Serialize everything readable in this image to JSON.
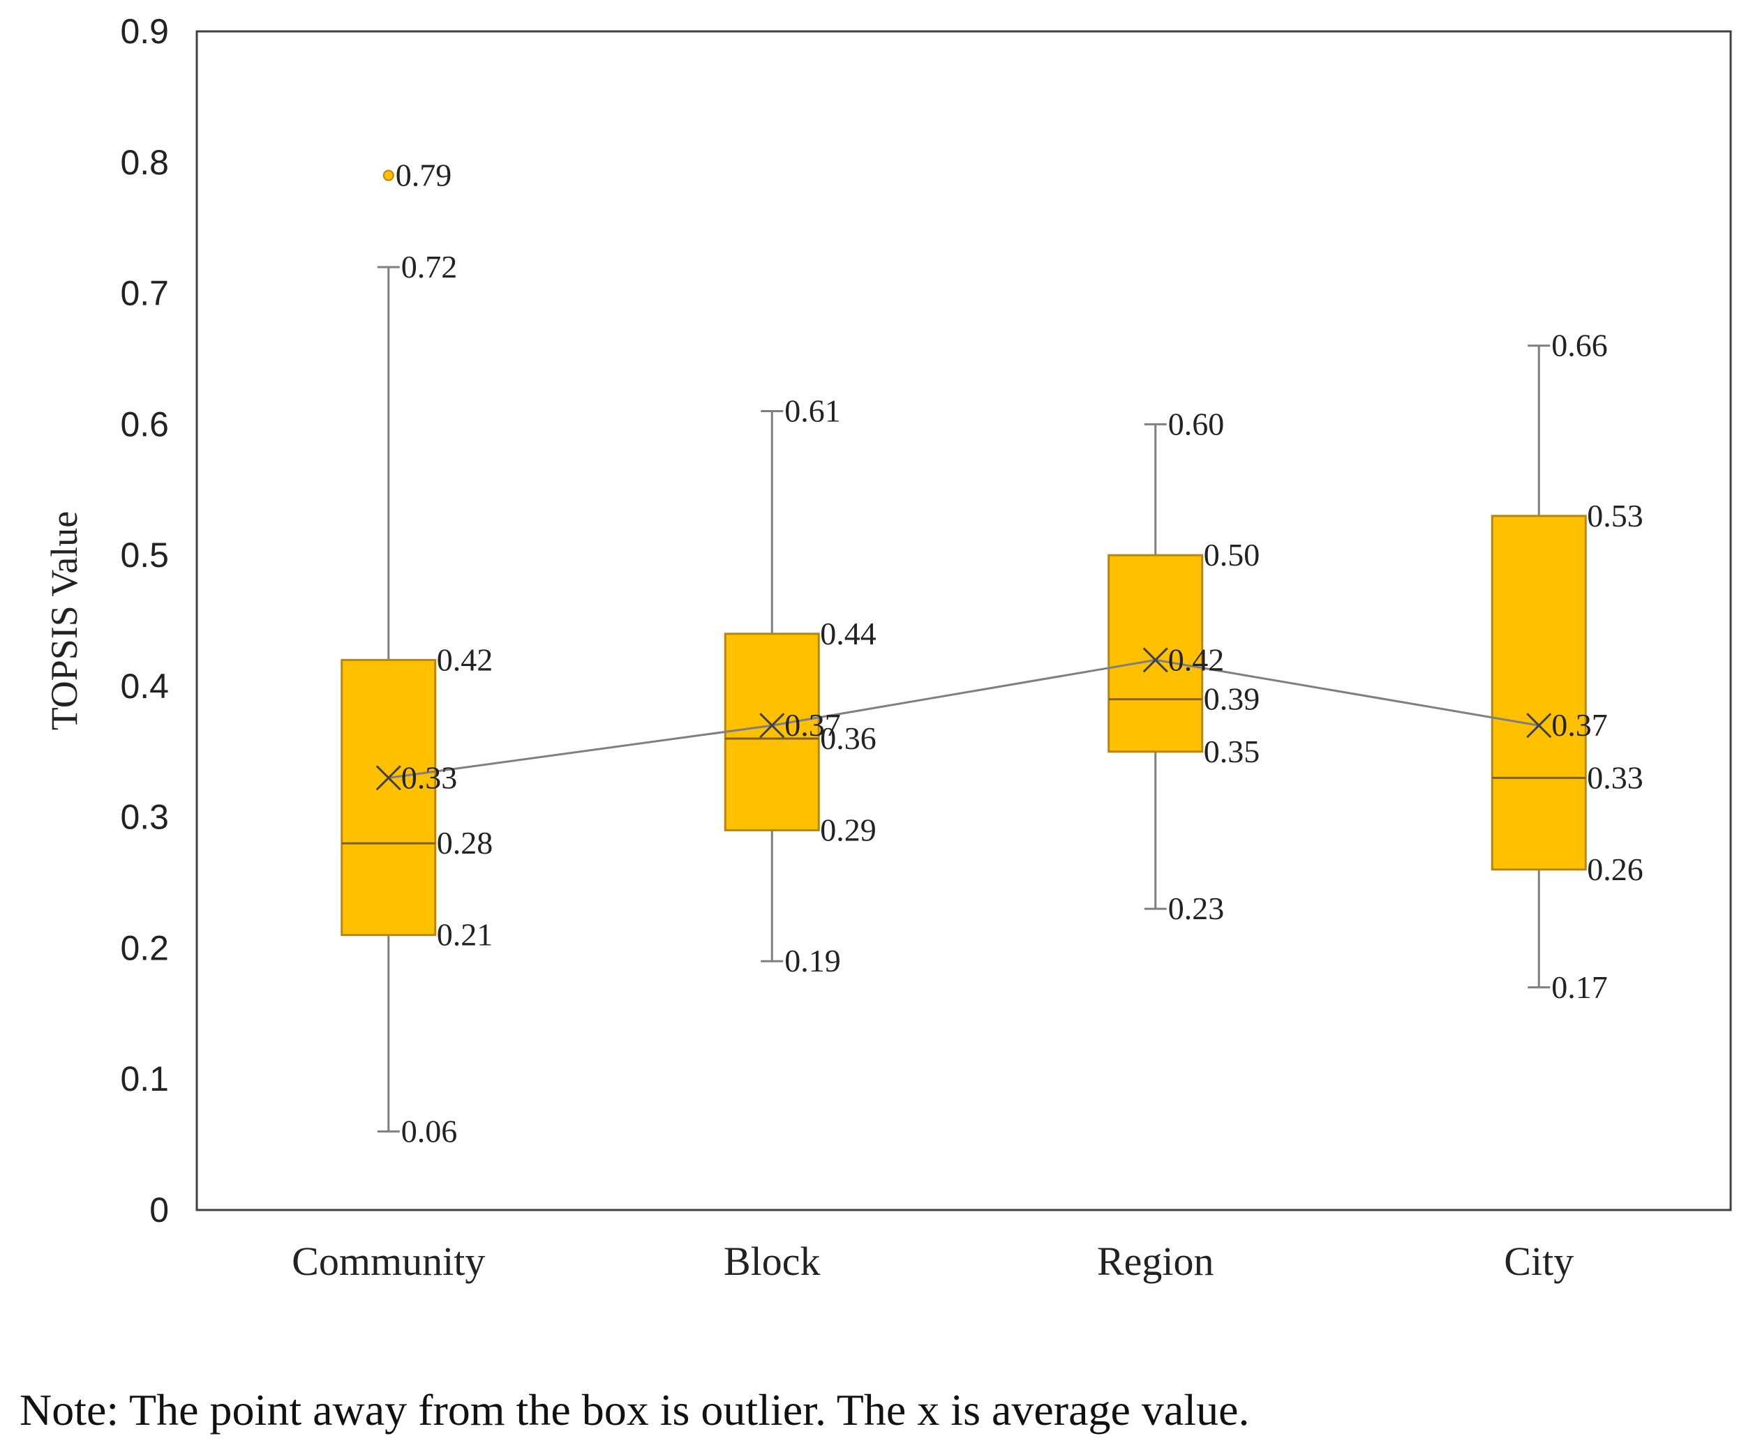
{
  "chart_data": {
    "type": "box",
    "ylabel": "TOPSIS Value",
    "xlabel": "",
    "ylim": [
      0,
      0.9
    ],
    "yticks": [
      "0",
      "0.1",
      "0.2",
      "0.3",
      "0.4",
      "0.5",
      "0.6",
      "0.7",
      "0.8",
      "0.9"
    ],
    "categories": [
      "Community",
      "Block",
      "Region",
      "City"
    ],
    "series": [
      {
        "name": "Community",
        "min": 0.06,
        "q1": 0.21,
        "median": 0.28,
        "q3": 0.42,
        "max": 0.72,
        "mean": 0.33,
        "outliers": [
          0.79
        ],
        "labels": {
          "min": "0.06",
          "q1": "0.21",
          "median": "0.28",
          "q3": "0.42",
          "max": "0.72",
          "mean": "0.33",
          "outliers": [
            "0.79"
          ]
        }
      },
      {
        "name": "Block",
        "min": 0.19,
        "q1": 0.29,
        "median": 0.36,
        "q3": 0.44,
        "max": 0.61,
        "mean": 0.37,
        "outliers": [],
        "labels": {
          "min": "0.19",
          "q1": "0.29",
          "median": "0.36",
          "q3": "0.44",
          "max": "0.61",
          "mean": "0.37",
          "outliers": []
        }
      },
      {
        "name": "Region",
        "min": 0.23,
        "q1": 0.35,
        "median": 0.39,
        "q3": 0.5,
        "max": 0.6,
        "mean": 0.42,
        "outliers": [],
        "labels": {
          "min": "0.23",
          "q1": "0.35",
          "median": "0.39",
          "q3": "0.50",
          "max": "0.60",
          "mean": "0.42",
          "outliers": []
        }
      },
      {
        "name": "City",
        "min": 0.17,
        "q1": 0.26,
        "median": 0.33,
        "q3": 0.53,
        "max": 0.66,
        "mean": 0.37,
        "outliers": [],
        "labels": {
          "min": "0.17",
          "q1": "0.26",
          "median": "0.33",
          "q3": "0.53",
          "max": "0.66",
          "mean": "0.37",
          "outliers": []
        }
      }
    ],
    "colors": {
      "box_fill": "#FFC000",
      "box_stroke": "#B8860B",
      "whisker": "#7F7F7F",
      "mean_line": "#7F7F7F",
      "axis": "#404040"
    }
  },
  "note": "Note: The point away from the box is outlier. The x is average value."
}
